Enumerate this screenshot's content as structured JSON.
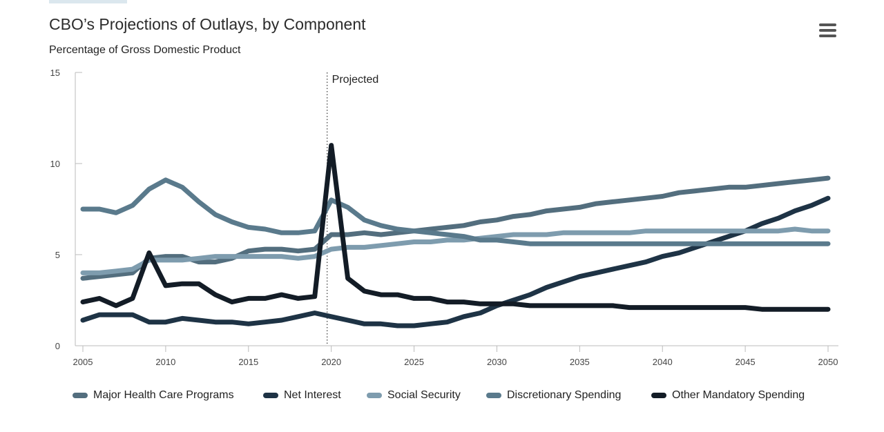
{
  "header": {
    "title": "CBO’s Projections of Outlays, by Component",
    "subtitle": "Percentage of Gross Domestic Product",
    "menu_icon": "hamburger-menu-icon"
  },
  "chart_data": {
    "type": "line",
    "title": "CBO’s Projections of Outlays, by Component",
    "subtitle": "Percentage of Gross Domestic Product",
    "xlabel": "",
    "ylabel": "",
    "xlim": [
      2005,
      2050
    ],
    "ylim": [
      0,
      15
    ],
    "x_ticks": [
      2005,
      2010,
      2015,
      2020,
      2025,
      2030,
      2035,
      2040,
      2045,
      2050
    ],
    "y_ticks": [
      0,
      5,
      10,
      15
    ],
    "annotation": {
      "x": 2019.75,
      "label": "Projected"
    },
    "grid": false,
    "legend_position": "bottom",
    "x": [
      2005,
      2006,
      2007,
      2008,
      2009,
      2010,
      2011,
      2012,
      2013,
      2014,
      2015,
      2016,
      2017,
      2018,
      2019,
      2020,
      2021,
      2022,
      2023,
      2024,
      2025,
      2026,
      2027,
      2028,
      2029,
      2030,
      2031,
      2032,
      2033,
      2034,
      2035,
      2036,
      2037,
      2038,
      2039,
      2040,
      2041,
      2042,
      2043,
      2044,
      2045,
      2046,
      2047,
      2048,
      2049,
      2050
    ],
    "series": [
      {
        "name": "Major Health Care Programs",
        "color": "#536e7e",
        "values": [
          3.7,
          3.8,
          3.9,
          4.0,
          4.8,
          4.9,
          4.9,
          4.6,
          4.6,
          4.8,
          5.2,
          5.3,
          5.3,
          5.2,
          5.3,
          6.1,
          6.1,
          6.2,
          6.1,
          6.2,
          6.3,
          6.4,
          6.5,
          6.6,
          6.8,
          6.9,
          7.1,
          7.2,
          7.4,
          7.5,
          7.6,
          7.8,
          7.9,
          8.0,
          8.1,
          8.2,
          8.4,
          8.5,
          8.6,
          8.7,
          8.7,
          8.8,
          8.9,
          9.0,
          9.1,
          9.2
        ]
      },
      {
        "name": "Net Interest",
        "color": "#1e3345",
        "values": [
          1.4,
          1.7,
          1.7,
          1.7,
          1.3,
          1.3,
          1.5,
          1.4,
          1.3,
          1.3,
          1.2,
          1.3,
          1.4,
          1.6,
          1.8,
          1.6,
          1.4,
          1.2,
          1.2,
          1.1,
          1.1,
          1.2,
          1.3,
          1.6,
          1.8,
          2.2,
          2.5,
          2.8,
          3.2,
          3.5,
          3.8,
          4.0,
          4.2,
          4.4,
          4.6,
          4.9,
          5.1,
          5.4,
          5.7,
          6.0,
          6.3,
          6.7,
          7.0,
          7.4,
          7.7,
          8.1
        ]
      },
      {
        "name": "Social Security",
        "color": "#7e9cae",
        "values": [
          4.0,
          4.0,
          4.1,
          4.2,
          4.7,
          4.7,
          4.7,
          4.8,
          4.9,
          4.9,
          4.9,
          4.9,
          4.9,
          4.8,
          4.9,
          5.3,
          5.4,
          5.4,
          5.5,
          5.6,
          5.7,
          5.7,
          5.8,
          5.8,
          5.9,
          6.0,
          6.1,
          6.1,
          6.1,
          6.2,
          6.2,
          6.2,
          6.2,
          6.2,
          6.3,
          6.3,
          6.3,
          6.3,
          6.3,
          6.3,
          6.3,
          6.3,
          6.3,
          6.4,
          6.3,
          6.3
        ]
      },
      {
        "name": "Discretionary Spending",
        "color": "#5a7a8c",
        "values": [
          7.5,
          7.5,
          7.3,
          7.7,
          8.6,
          9.1,
          8.7,
          7.9,
          7.2,
          6.8,
          6.5,
          6.4,
          6.2,
          6.2,
          6.3,
          8.0,
          7.6,
          6.9,
          6.6,
          6.4,
          6.3,
          6.2,
          6.1,
          6.0,
          5.8,
          5.8,
          5.7,
          5.6,
          5.6,
          5.6,
          5.6,
          5.6,
          5.6,
          5.6,
          5.6,
          5.6,
          5.6,
          5.6,
          5.6,
          5.6,
          5.6,
          5.6,
          5.6,
          5.6,
          5.6,
          5.6
        ]
      },
      {
        "name": "Other Mandatory Spending",
        "color": "#131c26",
        "values": [
          2.4,
          2.6,
          2.2,
          2.6,
          5.1,
          3.3,
          3.4,
          3.4,
          2.8,
          2.4,
          2.6,
          2.6,
          2.8,
          2.6,
          2.7,
          11.0,
          3.7,
          3.0,
          2.8,
          2.8,
          2.6,
          2.6,
          2.4,
          2.4,
          2.3,
          2.3,
          2.3,
          2.2,
          2.2,
          2.2,
          2.2,
          2.2,
          2.2,
          2.1,
          2.1,
          2.1,
          2.1,
          2.1,
          2.1,
          2.1,
          2.1,
          2.0,
          2.0,
          2.0,
          2.0,
          2.0
        ]
      }
    ]
  }
}
